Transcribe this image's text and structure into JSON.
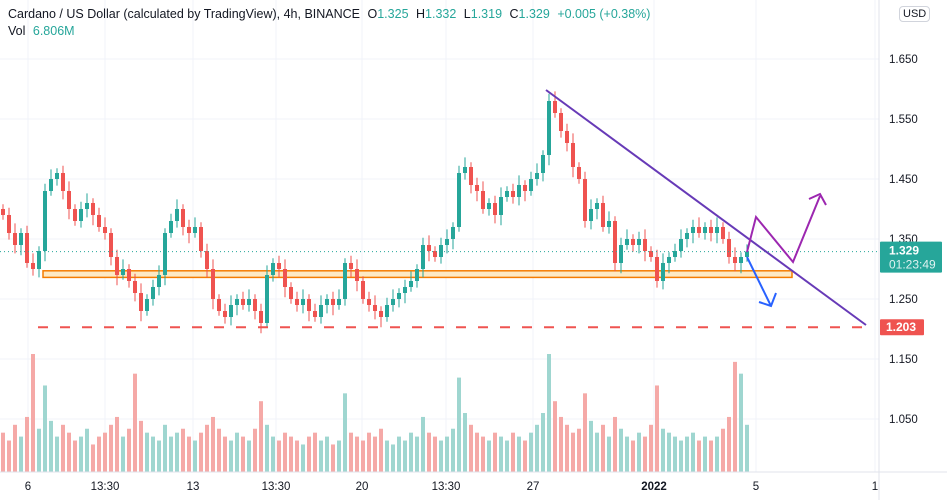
{
  "legend": {
    "title": "Cardano / US Dollar (calculated by TradingView), 4h, BINANCE",
    "o_label": "O",
    "o": "1.325",
    "h_label": "H",
    "h": "1.332",
    "l_label": "L",
    "l": "1.319",
    "c_label": "C",
    "c": "1.329",
    "change": "+0.005 (+0.38%)",
    "vol_label": "Vol",
    "vol": "6.806M"
  },
  "currency_button": "USD",
  "last_price": {
    "value": "1.329",
    "countdown": "01:23:49"
  },
  "support_label": "1.203",
  "colors": {
    "up": "#26a69a",
    "down": "#ef5350",
    "up_vol": "#9fd6d0",
    "down_vol": "#f5a9a7",
    "trend": "#673ab7",
    "zigzag": "#9c27b0",
    "down_arrow": "#2962ff",
    "zone_fill": "#fde9c4",
    "zone_stroke": "#f57c00"
  },
  "chart_data": {
    "type": "candlestick",
    "symbol": "ADAUSD",
    "interval": "4h",
    "ylim": [
      1.0,
      1.75
    ],
    "y_ticks": [
      "1.650",
      "1.550",
      "1.450",
      "1.350",
      "1.250",
      "1.150",
      "1.050"
    ],
    "x_ticks": [
      "6",
      "13:30",
      "13",
      "13:30",
      "20",
      "13:30",
      "27",
      "2022",
      "5",
      "1"
    ],
    "closes": [
      1.39,
      1.36,
      1.34,
      1.36,
      1.31,
      1.3,
      1.33,
      1.43,
      1.45,
      1.46,
      1.43,
      1.4,
      1.38,
      1.4,
      1.41,
      1.39,
      1.37,
      1.36,
      1.32,
      1.29,
      1.3,
      1.28,
      1.26,
      1.23,
      1.25,
      1.27,
      1.29,
      1.36,
      1.38,
      1.4,
      1.37,
      1.36,
      1.37,
      1.33,
      1.3,
      1.25,
      1.23,
      1.22,
      1.24,
      1.25,
      1.24,
      1.25,
      1.23,
      1.21,
      1.29,
      1.31,
      1.3,
      1.27,
      1.25,
      1.24,
      1.25,
      1.23,
      1.22,
      1.24,
      1.25,
      1.24,
      1.25,
      1.31,
      1.3,
      1.28,
      1.25,
      1.24,
      1.23,
      1.22,
      1.24,
      1.25,
      1.26,
      1.27,
      1.28,
      1.3,
      1.34,
      1.33,
      1.32,
      1.34,
      1.35,
      1.37,
      1.46,
      1.47,
      1.44,
      1.43,
      1.4,
      1.41,
      1.39,
      1.42,
      1.43,
      1.42,
      1.44,
      1.43,
      1.45,
      1.46,
      1.49,
      1.58,
      1.56,
      1.53,
      1.51,
      1.47,
      1.45,
      1.38,
      1.4,
      1.41,
      1.37,
      1.38,
      1.31,
      1.34,
      1.35,
      1.34,
      1.35,
      1.33,
      1.32,
      1.28,
      1.31,
      1.32,
      1.33,
      1.35,
      1.36,
      1.37,
      1.36,
      1.37,
      1.36,
      1.37,
      1.35,
      1.32,
      1.31,
      1.32,
      1.329
    ],
    "volumes": [
      10,
      8,
      12,
      9,
      14,
      30,
      11,
      22,
      13,
      9,
      12,
      10,
      8,
      9,
      11,
      7,
      9,
      10,
      12,
      14,
      9,
      11,
      25,
      13,
      10,
      9,
      8,
      12,
      9,
      10,
      11,
      9,
      8,
      10,
      12,
      14,
      11,
      9,
      8,
      10,
      9,
      8,
      11,
      18,
      12,
      9,
      8,
      10,
      9,
      8,
      7,
      9,
      10,
      8,
      9,
      7,
      8,
      20,
      10,
      9,
      8,
      10,
      9,
      11,
      8,
      7,
      9,
      8,
      10,
      9,
      14,
      10,
      9,
      8,
      9,
      11,
      24,
      15,
      12,
      10,
      9,
      8,
      10,
      9,
      8,
      10,
      9,
      8,
      10,
      12,
      15,
      30,
      18,
      14,
      12,
      10,
      11,
      20,
      13,
      10,
      12,
      9,
      14,
      11,
      9,
      8,
      10,
      9,
      12,
      22,
      11,
      10,
      9,
      8,
      9,
      10,
      8,
      9,
      8,
      9,
      11,
      14,
      28,
      25,
      12
    ],
    "support_level": 1.203,
    "zone": [
      1.286,
      1.297
    ],
    "trendline": [
      [
        91,
        1.6
      ],
      [
        144,
        1.203
      ]
    ]
  }
}
